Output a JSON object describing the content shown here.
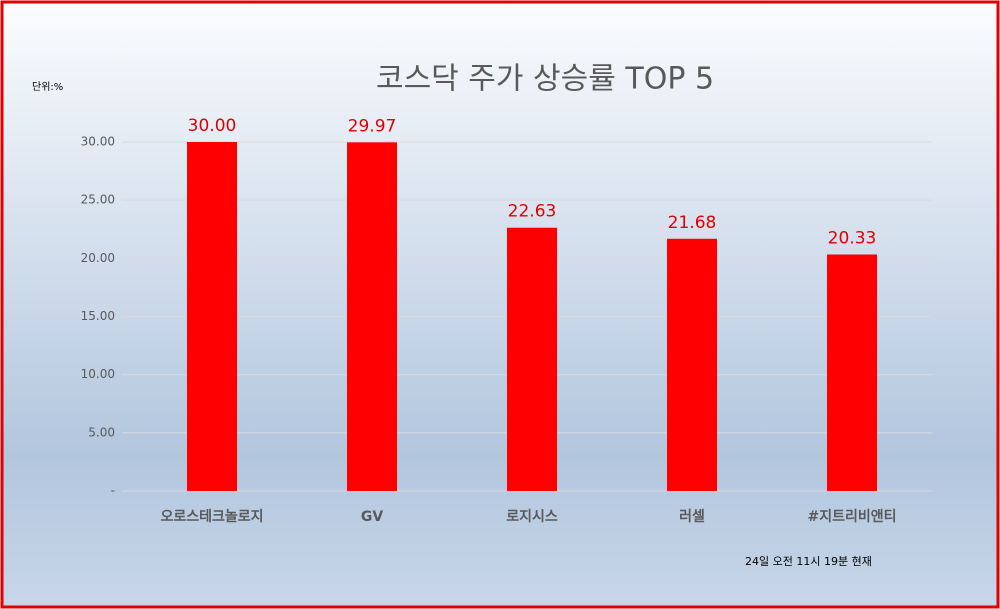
{
  "chart_data": {
    "type": "bar",
    "title": "코스닥 주가 상승률 TOP 5",
    "unit_label": "단위:%",
    "footnote": "24일 오전 11시 19분 현재",
    "categories": [
      "오로스테크놀로지",
      "GV",
      "로지시스",
      "러셀",
      "#지트리비앤티"
    ],
    "values": [
      30,
      29.97,
      22.63,
      21.68,
      20.33
    ],
    "value_labels": [
      "30.00",
      "29.97",
      "22.63",
      "21.68",
      "20.33"
    ],
    "color": "#ff0000",
    "ylim": [
      0,
      30
    ],
    "yticks": [
      {
        "value": 0,
        "label": "-"
      },
      {
        "value": 5,
        "label": "5.00"
      },
      {
        "value": 10,
        "label": "10.00"
      },
      {
        "value": 15,
        "label": "15.00"
      },
      {
        "value": 20,
        "label": "20.00"
      },
      {
        "value": 25,
        "label": "25.00"
      },
      {
        "value": 30,
        "label": "30.00"
      }
    ],
    "grid": true
  }
}
